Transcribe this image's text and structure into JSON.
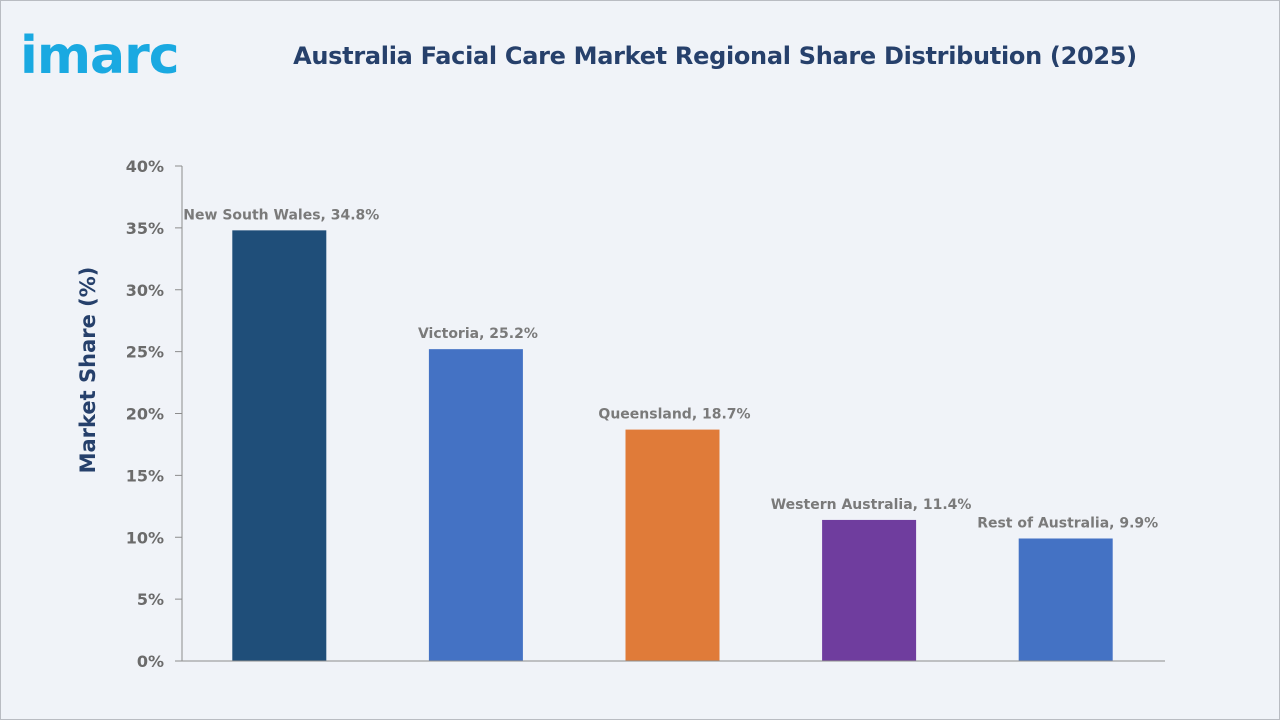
{
  "brand": {
    "logo_text": "imarc",
    "color": "#1aa9e1"
  },
  "chart_data": {
    "type": "bar",
    "title": "Australia Facial Care Market Regional Share Distribution (2025)",
    "xlabel": "",
    "ylabel": "Market Share (%)",
    "categories": [
      "New South Wales",
      "Victoria",
      "Queensland",
      "Western Australia",
      "Rest of Australia"
    ],
    "values": [
      34.8,
      25.2,
      18.7,
      11.4,
      9.9
    ],
    "data_labels": [
      "New South Wales, 34.8%",
      "Victoria, 25.2%",
      "Queensland, 18.7%",
      "Western Australia, 11.4%",
      "Rest of Australia, 9.9%"
    ],
    "colors": [
      "#1f4e79",
      "#4472c4",
      "#e07b39",
      "#6f3d9e",
      "#4472c4"
    ],
    "ylim": [
      0,
      40
    ],
    "yticks": [
      0,
      5,
      10,
      15,
      20,
      25,
      30,
      35,
      40
    ],
    "ytick_labels": [
      "0%",
      "5%",
      "10%",
      "15%",
      "20%",
      "25%",
      "30%",
      "35%",
      "40%"
    ],
    "grid": false,
    "legend": "none"
  }
}
